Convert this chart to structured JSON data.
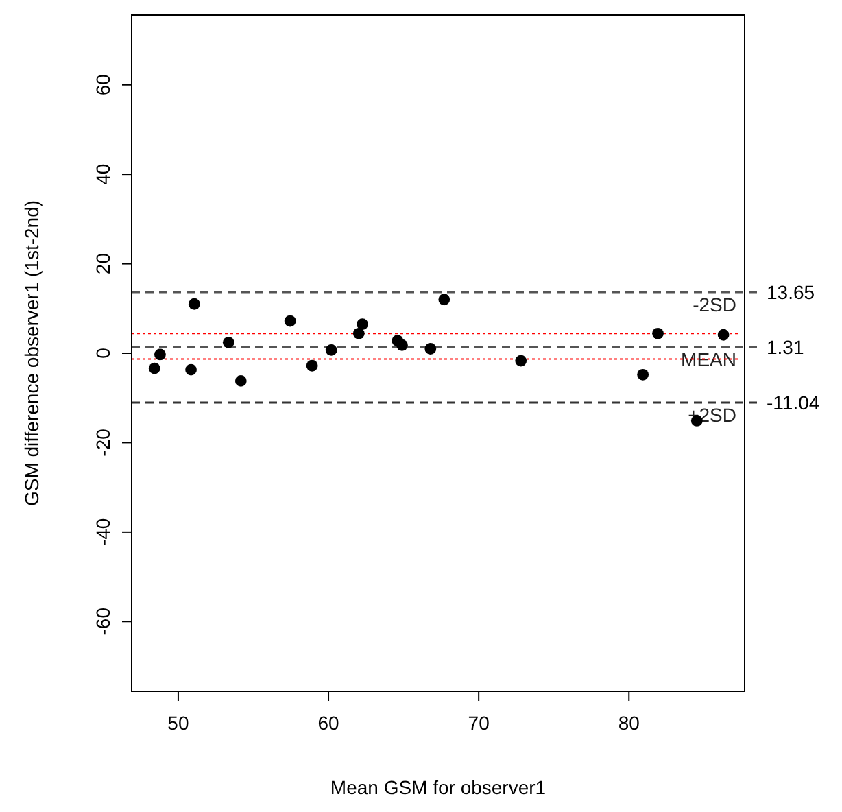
{
  "chart_data": {
    "type": "scatter",
    "xlabel": "Mean GSM for observer1",
    "ylabel": "GSM difference observer1  (1st-2nd)",
    "x": [
      48.42,
      48.79,
      51.07,
      50.85,
      53.35,
      54.17,
      57.45,
      58.91,
      60.19,
      62.02,
      62.26,
      64.6,
      64.9,
      66.79,
      67.7,
      72.81,
      80.93,
      81.93,
      84.52,
      86.29
    ],
    "series": [
      {
        "color": "#000000",
        "values": [
          -3.4,
          -0.3,
          11.0,
          -3.7,
          2.4,
          -6.2,
          7.2,
          -2.8,
          0.7,
          4.4,
          6.5,
          2.8,
          1.8,
          1.0,
          12.0,
          -1.7,
          -4.8,
          4.4,
          -15.1,
          4.1
        ]
      }
    ],
    "xlim": [
      46.9,
      87.7
    ],
    "ylim": [
      -75.6,
      75.6
    ],
    "xticks": [
      50,
      60,
      70,
      80
    ],
    "yticks": [
      -60,
      -40,
      -20,
      0,
      20,
      40,
      60
    ],
    "marker": "circle",
    "grid": false,
    "ref_lines": [
      {
        "axis": "y",
        "value": 13.65,
        "label": "-2SD",
        "color": "#555555",
        "line_style": "dashed"
      },
      {
        "axis": "y",
        "value": 1.31,
        "label": "MEAN",
        "color": "#555555",
        "line_style": "dashed"
      },
      {
        "axis": "y",
        "value": -11.04,
        "label": "+2SD",
        "color": "#333333",
        "line_style": "dashed"
      },
      {
        "axis": "y",
        "value": 4.4,
        "color": "#ff0000",
        "line_style": "dotted"
      },
      {
        "axis": "y",
        "value": -1.3,
        "color": "#ff0000",
        "line_style": "dotted"
      }
    ],
    "annotations": [
      "13.65",
      "1.31",
      "-11.04"
    ]
  }
}
